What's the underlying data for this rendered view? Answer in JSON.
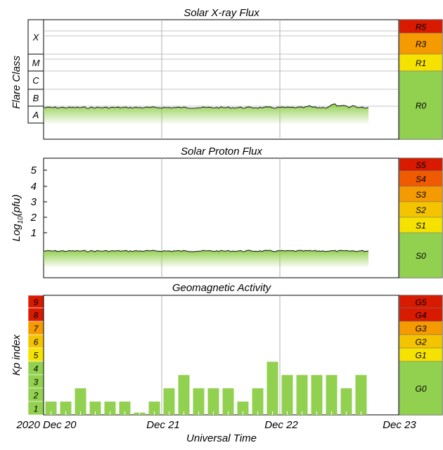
{
  "colors": {
    "green": "#92d050",
    "yellow": "#f5e200",
    "gold": "#f5c400",
    "orange": "#f59a00",
    "red_orange": "#f05a00",
    "red": "#d81a00",
    "grid": "#b0b0b0",
    "axis": "#000000"
  },
  "xray": {
    "title": "Solar X-ray Flux",
    "ylabel": "Flare Class",
    "classes": [
      "X",
      "M",
      "C",
      "B",
      "A"
    ],
    "scale": [
      {
        "label": "R5",
        "color": "red"
      },
      {
        "label": "R3",
        "color": "orange"
      },
      {
        "label": "R1",
        "color": "yellow"
      },
      {
        "label": "R0",
        "color": "green"
      }
    ]
  },
  "proton": {
    "title": "Solar Proton Flux",
    "ylabel_main": "Log",
    "ylabel_sub": "10",
    "ylabel_tail": "(pfu)",
    "ticks": [
      "5",
      "4",
      "3",
      "2",
      "1"
    ],
    "scale": [
      {
        "label": "S5",
        "color": "red"
      },
      {
        "label": "S4",
        "color": "red_orange"
      },
      {
        "label": "S3",
        "color": "orange"
      },
      {
        "label": "S2",
        "color": "gold"
      },
      {
        "label": "S1",
        "color": "yellow"
      },
      {
        "label": "S0",
        "color": "green"
      }
    ]
  },
  "geomag": {
    "title": "Geomagnetic Activity",
    "ylabel": "Kp index",
    "kp_levels": [
      {
        "label": "9",
        "color": "red"
      },
      {
        "label": "8",
        "color": "red"
      },
      {
        "label": "7",
        "color": "orange"
      },
      {
        "label": "6",
        "color": "gold"
      },
      {
        "label": "5",
        "color": "yellow"
      },
      {
        "label": "4",
        "color": "green"
      },
      {
        "label": "3",
        "color": "green"
      },
      {
        "label": "2",
        "color": "green"
      },
      {
        "label": "1",
        "color": "green"
      }
    ],
    "scale": [
      {
        "label": "G5",
        "color": "red"
      },
      {
        "label": "G4",
        "color": "red"
      },
      {
        "label": "G3",
        "color": "orange"
      },
      {
        "label": "G2",
        "color": "gold"
      },
      {
        "label": "G1",
        "color": "yellow"
      },
      {
        "label": "G0",
        "color": "green"
      }
    ]
  },
  "xaxis": {
    "title": "Universal Time",
    "ticks": [
      "2020 Dec 20",
      "Dec 21",
      "Dec 22",
      "Dec 23"
    ]
  },
  "chart_data": [
    {
      "type": "area",
      "title": "Solar X-ray Flux",
      "ylabel": "Flare Class",
      "y_scale": "log",
      "y_categories": [
        "A",
        "B",
        "C",
        "M",
        "X"
      ],
      "x_range": [
        "2020-12-20 00:00",
        "2020-12-23 00:00"
      ],
      "data_end": "2020-12-22 18:00",
      "level_description": "Flux near low B-class throughout, slight rise late Dec 22",
      "x_hours": [
        0,
        6,
        12,
        18,
        24,
        30,
        36,
        42,
        48,
        54,
        60,
        66
      ],
      "y_class_level": [
        "B1",
        "B1",
        "B1",
        "B1",
        "B1",
        "B1",
        "B1",
        "B1",
        "B1",
        "B1.2",
        "B1.3",
        "B1.2"
      ]
    },
    {
      "type": "area",
      "title": "Solar Proton Flux",
      "ylabel": "Log10(pfu)",
      "ylim": [
        -1,
        6
      ],
      "x_range": [
        "2020-12-20 00:00",
        "2020-12-23 00:00"
      ],
      "data_end": "2020-12-22 18:00",
      "x_hours": [
        0,
        12,
        24,
        36,
        48,
        60,
        66
      ],
      "y_values": [
        -0.4,
        -0.4,
        -0.4,
        -0.4,
        -0.4,
        -0.4,
        -0.4
      ]
    },
    {
      "type": "bar",
      "title": "Geomagnetic Activity",
      "ylabel": "Kp index",
      "xlabel": "Universal Time",
      "ylim": [
        0,
        9
      ],
      "bar_width_hours": 3,
      "x_start_hours": [
        0,
        3,
        6,
        9,
        12,
        15,
        18,
        21,
        24,
        27,
        30,
        33,
        36,
        39,
        42,
        45,
        48,
        51,
        54,
        57,
        60,
        63,
        66
      ],
      "values": [
        1,
        1,
        2,
        1,
        1,
        1,
        0.17,
        1,
        2,
        3,
        2,
        2,
        2,
        1,
        2,
        4,
        3,
        3,
        3,
        3,
        2,
        3,
        0
      ]
    }
  ]
}
